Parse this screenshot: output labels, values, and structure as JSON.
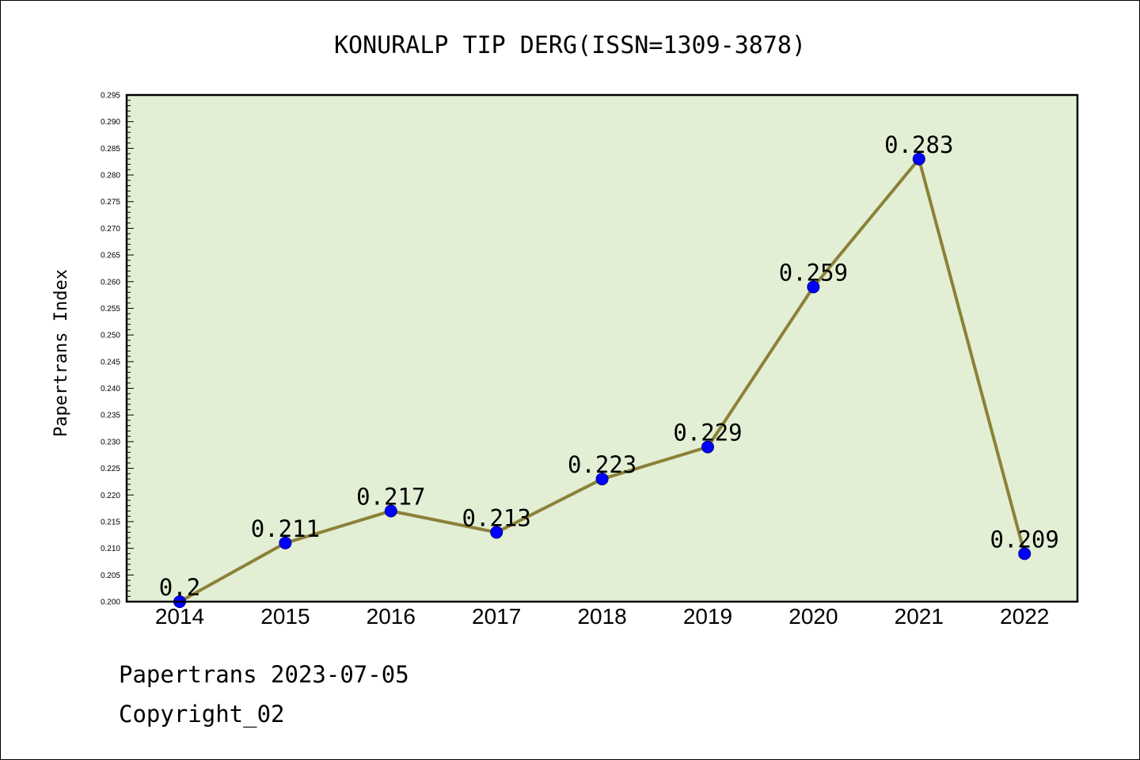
{
  "chart_data": {
    "type": "line",
    "title": "KONURALP TIP DERG(ISSN=1309-3878)",
    "xlabel": "",
    "ylabel": "Papertrans Index",
    "categories": [
      "2014",
      "2015",
      "2016",
      "2017",
      "2018",
      "2019",
      "2020",
      "2021",
      "2022"
    ],
    "series": [
      {
        "values": [
          0.2,
          0.211,
          0.217,
          0.213,
          0.223,
          0.229,
          0.259,
          0.283,
          0.209
        ],
        "data_labels": [
          "0.2",
          "0.211",
          "0.217",
          "0.213",
          "0.223",
          "0.229",
          "0.259",
          "0.283",
          "0.209"
        ]
      }
    ],
    "ylim": [
      0.2,
      0.295
    ],
    "yticks": [
      "0.200",
      "0.205",
      "0.210",
      "0.215",
      "0.220",
      "0.225",
      "0.230",
      "0.235",
      "0.240",
      "0.245",
      "0.250",
      "0.255",
      "0.260",
      "0.265",
      "0.270",
      "0.275",
      "0.280",
      "0.285",
      "0.290",
      "0.295"
    ],
    "grid": false,
    "legend": "none",
    "colors": {
      "plot_background": "#e2efd4",
      "line": "#8b8138",
      "marker": "#0000ff"
    }
  },
  "footer": {
    "line1": "Papertrans 2023-07-05",
    "line2": "Copyright_02"
  }
}
